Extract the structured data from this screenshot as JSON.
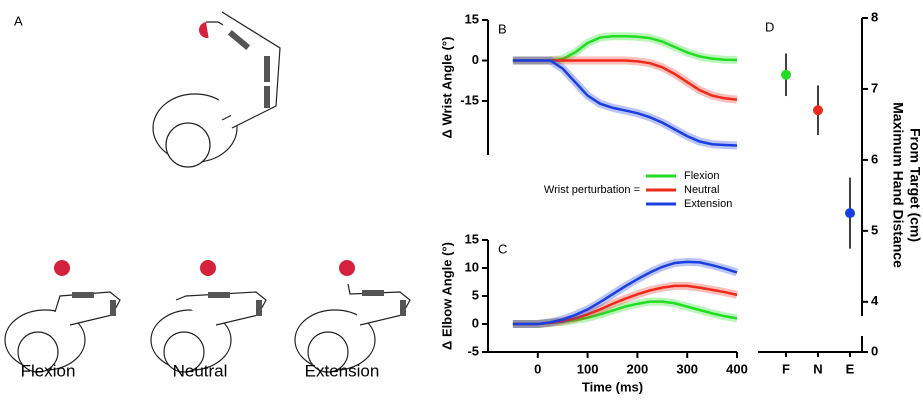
{
  "panel_a": {
    "label": "A",
    "conditions": [
      "Flexion",
      "Neutral",
      "Extension"
    ]
  },
  "chart_data": [
    {
      "type": "line",
      "panel_label": "B",
      "ylabel": "Δ Wrist Angle (°)",
      "x": [
        -50,
        -25,
        0,
        25,
        50,
        75,
        100,
        125,
        150,
        175,
        200,
        225,
        250,
        275,
        300,
        325,
        350,
        375,
        400
      ],
      "xlim": [
        -100,
        400
      ],
      "ylim": [
        -35,
        15
      ],
      "yticks": [
        -15,
        0,
        15
      ],
      "series": [
        {
          "color": "#22dd22",
          "values": [
            0,
            0,
            0,
            0,
            0.5,
            3,
            6.5,
            8.5,
            9,
            9,
            8.8,
            8.3,
            7,
            5,
            3,
            1.5,
            0.7,
            0.3,
            0.2
          ]
        },
        {
          "color": "#ee2a1a",
          "values": [
            0,
            0,
            0,
            0,
            0,
            0,
            0,
            0,
            0,
            0,
            -0.3,
            -1,
            -2.5,
            -5,
            -8,
            -11,
            -13,
            -14,
            -14.5
          ]
        },
        {
          "color": "#1a3fe0",
          "values": [
            0,
            0,
            0,
            0,
            -3,
            -8,
            -13,
            -16,
            -17.5,
            -18.5,
            -19.5,
            -21,
            -23,
            -25.5,
            -28,
            -30,
            -31,
            -31.3,
            -31.5
          ]
        }
      ]
    },
    {
      "type": "line",
      "panel_label": "C",
      "ylabel": "Δ Elbow Angle (°)",
      "xlabel": "Time (ms)",
      "legend_title": "Wrist perturbation =",
      "x": [
        -50,
        -25,
        0,
        25,
        50,
        75,
        100,
        125,
        150,
        175,
        200,
        225,
        250,
        275,
        300,
        325,
        350,
        375,
        400
      ],
      "xlim": [
        -100,
        400
      ],
      "xticks": [
        0,
        100,
        200,
        300,
        400
      ],
      "ylim": [
        -5,
        15
      ],
      "yticks": [
        -5,
        0,
        5,
        10,
        15
      ],
      "series": [
        {
          "name": "Flexion",
          "color": "#22dd22",
          "values": [
            0,
            0,
            0,
            0.2,
            0.4,
            0.7,
            1.1,
            1.7,
            2.4,
            3.1,
            3.6,
            4,
            4,
            3.7,
            3.1,
            2.5,
            1.9,
            1.4,
            1
          ]
        },
        {
          "name": "Neutral",
          "color": "#ee2a1a",
          "values": [
            0,
            0,
            0,
            0.2,
            0.5,
            1,
            1.7,
            2.6,
            3.6,
            4.5,
            5.3,
            6,
            6.5,
            6.8,
            6.8,
            6.5,
            6.1,
            5.7,
            5.2
          ]
        },
        {
          "name": "Extension",
          "color": "#1a3fe0",
          "values": [
            0,
            0,
            0,
            0.3,
            0.8,
            1.6,
            2.6,
            3.9,
            5.3,
            6.7,
            8,
            9.2,
            10.2,
            10.9,
            11.1,
            11,
            10.5,
            9.9,
            9.2
          ]
        }
      ]
    },
    {
      "type": "errorbar",
      "panel_label": "D",
      "ylabel_lines": [
        "Maximum Hand Distance",
        "From Target (cm)"
      ],
      "categories": [
        "F",
        "N",
        "E"
      ],
      "values": [
        7.2,
        6.7,
        5.25
      ],
      "errors": [
        0.3,
        0.35,
        0.5
      ],
      "colors": [
        "#22dd22",
        "#ee2a1a",
        "#1a3fe0"
      ],
      "ylim": [
        3.8,
        8
      ],
      "yticks": [
        4,
        5,
        6,
        7,
        8
      ],
      "y_break_tick": 0
    }
  ]
}
